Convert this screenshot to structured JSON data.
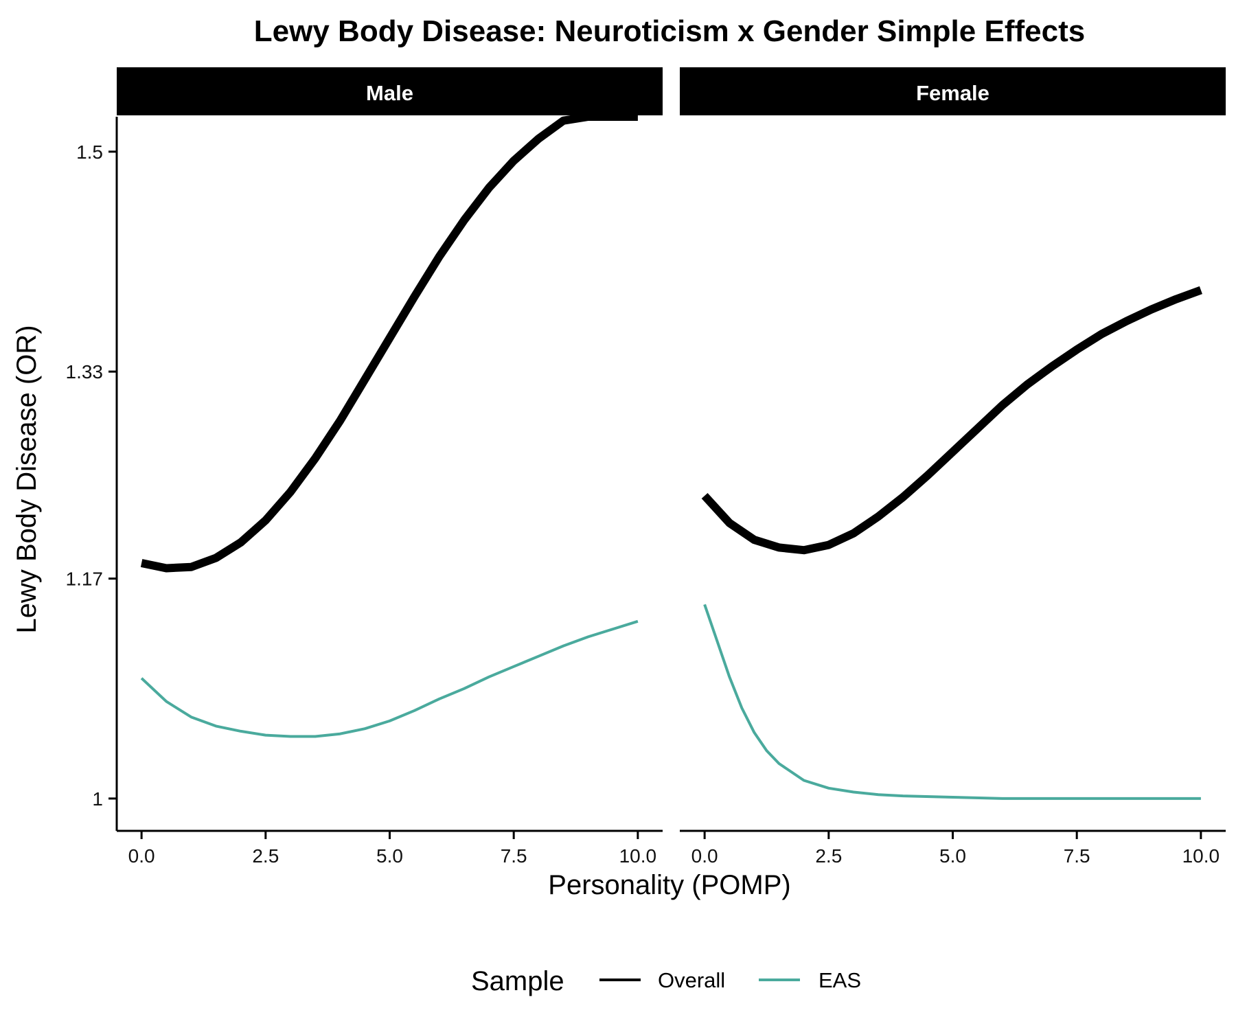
{
  "chart_data": {
    "type": "line",
    "title": "Lewy Body Disease: Neuroticism x Gender Simple Effects",
    "xlabel": "Personality (POMP)",
    "ylabel": "Lewy Body Disease (OR)",
    "xlim": [
      -0.5,
      10.5
    ],
    "ylim": [
      0.975,
      1.527
    ],
    "x_ticks": [
      0,
      2.5,
      5,
      7.5,
      10
    ],
    "x_tick_labels": [
      "0.0",
      "2.5",
      "5.0",
      "7.5",
      "10.0"
    ],
    "y_ticks": [
      1,
      1.17,
      1.33,
      1.5
    ],
    "y_tick_labels": [
      "1",
      "1.17",
      "1.33",
      "1.5"
    ],
    "grid": false,
    "legend": {
      "title": "Sample",
      "position": "bottom",
      "entries": [
        {
          "label": "Overall",
          "color": "#000000"
        },
        {
          "label": "EAS",
          "color": "#4aaa9d"
        }
      ]
    },
    "panels": [
      {
        "name": "Male",
        "series": [
          {
            "name": "Overall",
            "color": "#000000",
            "width": "thick",
            "x": [
              0,
              0.5,
              1,
              1.5,
              2,
              2.5,
              3,
              3.5,
              4,
              4.5,
              5,
              5.5,
              6,
              6.5,
              7,
              7.5,
              8,
              8.5,
              9,
              9.5,
              10
            ],
            "y": [
              1.182,
              1.178,
              1.179,
              1.186,
              1.198,
              1.215,
              1.237,
              1.263,
              1.292,
              1.324,
              1.356,
              1.388,
              1.419,
              1.447,
              1.472,
              1.493,
              1.51,
              1.524,
              1.536,
              1.546,
              1.555
            ]
          },
          {
            "name": "EAS",
            "color": "#4aaa9d",
            "width": "thin",
            "x": [
              0,
              0.5,
              1,
              1.5,
              2,
              2.5,
              3,
              3.5,
              4,
              4.5,
              5,
              5.5,
              6,
              6.5,
              7,
              7.5,
              8,
              8.5,
              9,
              9.5,
              10
            ],
            "y": [
              1.093,
              1.075,
              1.063,
              1.056,
              1.052,
              1.049,
              1.048,
              1.048,
              1.05,
              1.054,
              1.06,
              1.068,
              1.077,
              1.085,
              1.094,
              1.102,
              1.11,
              1.118,
              1.125,
              1.131,
              1.137
            ]
          }
        ]
      },
      {
        "name": "Female",
        "series": [
          {
            "name": "Overall",
            "color": "#000000",
            "width": "thick",
            "x": [
              0,
              0.5,
              1,
              1.5,
              2,
              2.5,
              3,
              3.5,
              4,
              4.5,
              5,
              5.5,
              6,
              6.5,
              7,
              7.5,
              8,
              8.5,
              9,
              9.5,
              10
            ],
            "y": [
              1.234,
              1.213,
              1.2,
              1.194,
              1.192,
              1.196,
              1.205,
              1.218,
              1.233,
              1.25,
              1.268,
              1.286,
              1.304,
              1.32,
              1.334,
              1.347,
              1.359,
              1.369,
              1.378,
              1.386,
              1.393
            ]
          },
          {
            "name": "EAS",
            "color": "#4aaa9d",
            "width": "thin",
            "x": [
              0,
              0.25,
              0.5,
              0.75,
              1,
              1.25,
              1.5,
              2,
              2.5,
              3,
              3.5,
              4,
              5,
              6,
              7,
              8,
              9,
              10
            ],
            "y": [
              1.15,
              1.122,
              1.094,
              1.07,
              1.051,
              1.037,
              1.027,
              1.014,
              1.008,
              1.005,
              1.003,
              1.002,
              1.001,
              1.0,
              1.0,
              1.0,
              1.0,
              1.0
            ]
          }
        ]
      }
    ]
  }
}
